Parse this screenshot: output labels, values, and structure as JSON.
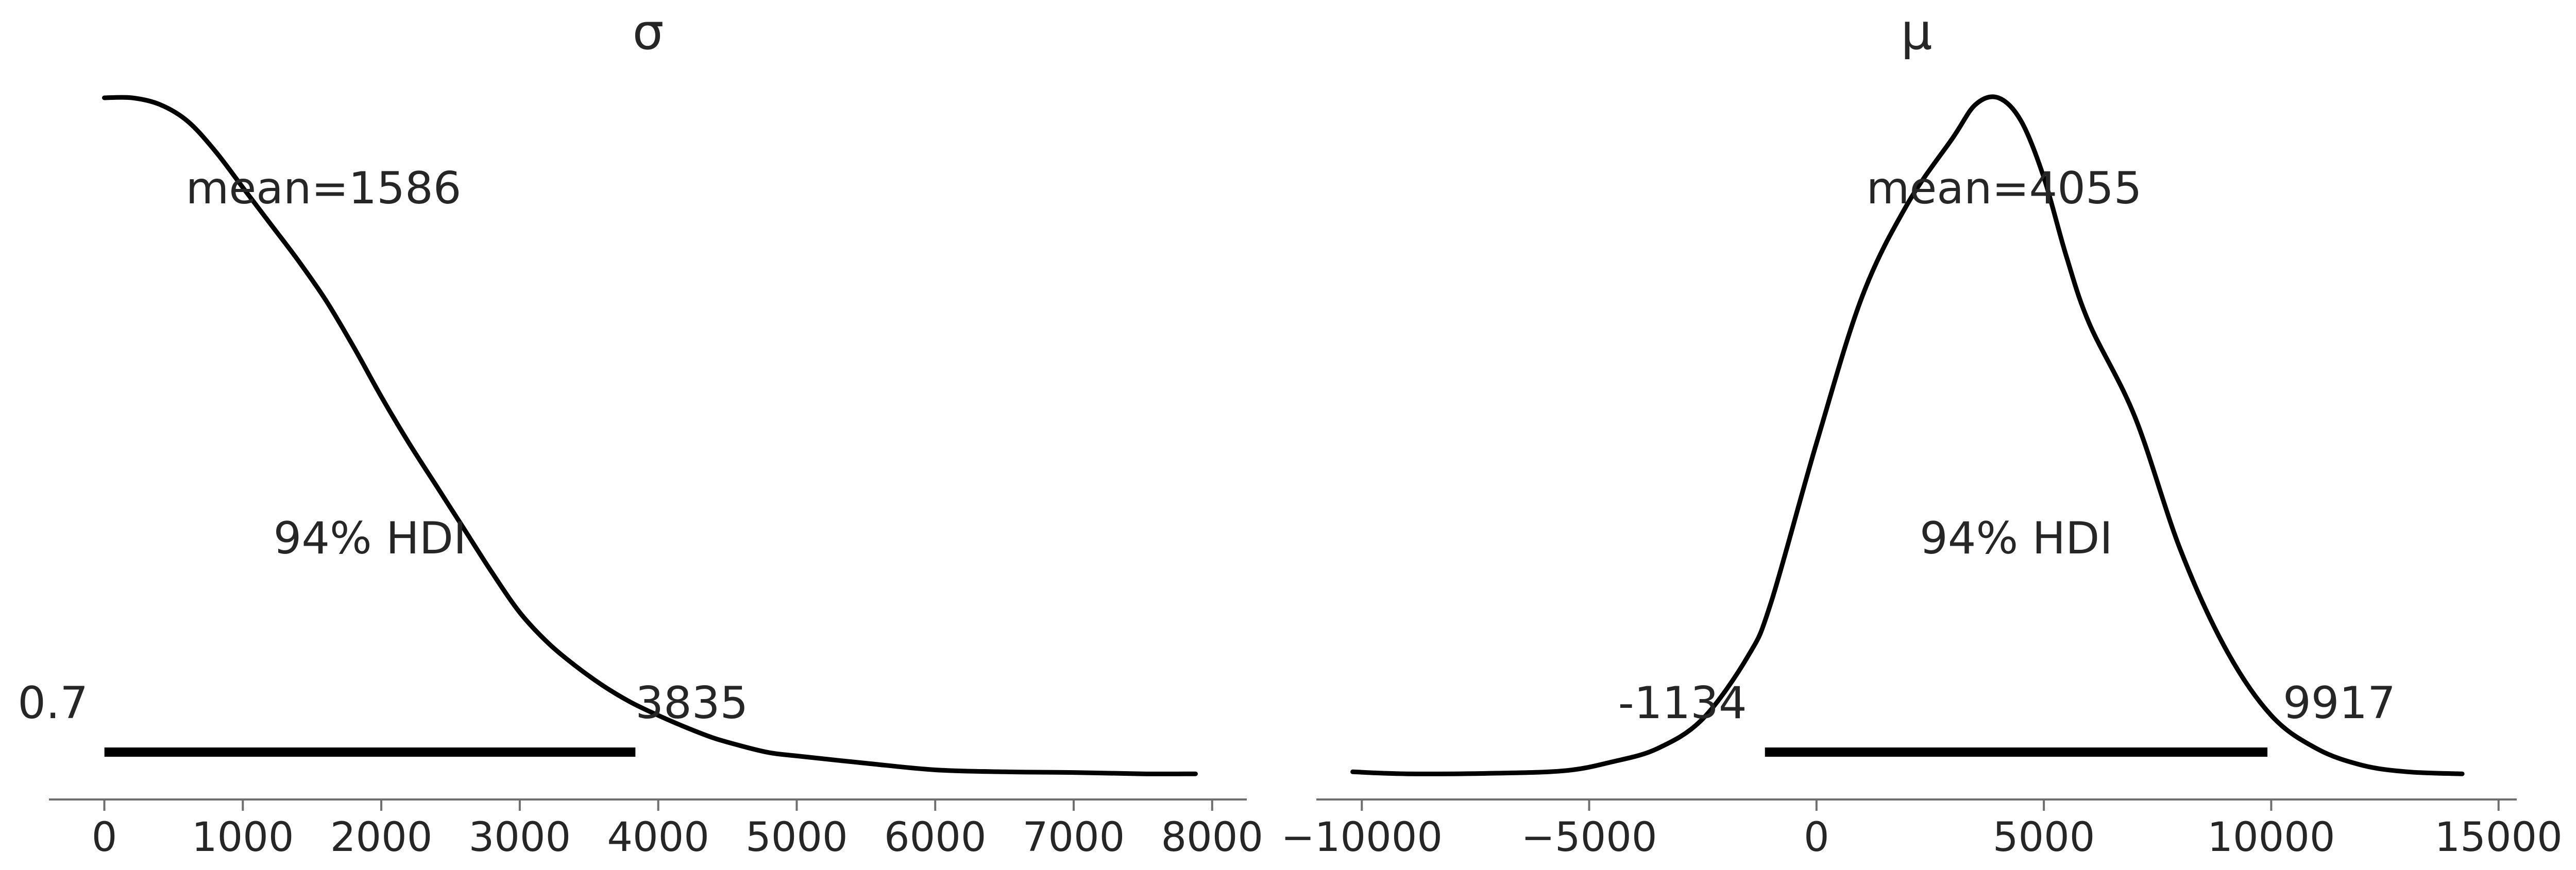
{
  "chart_data": [
    {
      "type": "line",
      "title": "σ",
      "xlim": [
        -400,
        8250
      ],
      "x_ticks": [
        0,
        1000,
        2000,
        3000,
        4000,
        5000,
        6000,
        7000,
        8000
      ],
      "x_tick_labels": [
        "0",
        "1000",
        "2000",
        "3000",
        "4000",
        "5000",
        "6000",
        "7000",
        "8000"
      ],
      "mean_label": "mean=1586",
      "hdi_label": "94% HDI",
      "hdi_low": 0.7,
      "hdi_high": 3835,
      "hdi_low_label": "0.7",
      "hdi_high_label": "3835",
      "density": {
        "x": [
          0,
          200,
          400,
          600,
          800,
          1000,
          1200,
          1400,
          1600,
          1800,
          2000,
          2200,
          2400,
          2600,
          2800,
          3000,
          3200,
          3400,
          3600,
          3800,
          4000,
          4200,
          4400,
          4600,
          4800,
          5000,
          5500,
          6000,
          6500,
          7000,
          7500,
          7880
        ],
        "y": [
          1.0,
          1.0,
          0.99,
          0.965,
          0.92,
          0.865,
          0.81,
          0.755,
          0.695,
          0.625,
          0.55,
          0.48,
          0.415,
          0.35,
          0.285,
          0.225,
          0.18,
          0.145,
          0.115,
          0.09,
          0.07,
          0.052,
          0.036,
          0.024,
          0.014,
          0.009,
          -0.002,
          -0.012,
          -0.015,
          -0.016,
          -0.018,
          -0.018
        ]
      }
    },
    {
      "type": "line",
      "title": "μ",
      "xlim": [
        -11000,
        15400
      ],
      "x_ticks": [
        -10000,
        -5000,
        0,
        5000,
        10000,
        15000
      ],
      "x_tick_labels": [
        "−10000",
        "−5000",
        "0",
        "5000",
        "10000",
        "15000"
      ],
      "mean_label": "mean=4055",
      "hdi_label": "94% HDI",
      "hdi_low": -1134,
      "hdi_high": 9917,
      "hdi_low_label": "-1134",
      "hdi_high_label": "9917",
      "density": {
        "x": [
          -10200,
          -9000,
          -7000,
          -5500,
          -4500,
          -3500,
          -2500,
          -1500,
          -1000,
          0,
          1000,
          2000,
          3000,
          3500,
          4000,
          4500,
          5000,
          5500,
          6000,
          7000,
          8000,
          9000,
          10000,
          11000,
          12000,
          13000,
          14200
        ],
        "y": [
          -0.015,
          -0.018,
          -0.017,
          -0.013,
          0.0,
          0.02,
          0.065,
          0.16,
          0.24,
          0.48,
          0.7,
          0.84,
          0.94,
          0.99,
          1.0,
          0.965,
          0.88,
          0.76,
          0.66,
          0.52,
          0.32,
          0.17,
          0.07,
          0.02,
          -0.005,
          -0.015,
          -0.018
        ]
      }
    }
  ]
}
